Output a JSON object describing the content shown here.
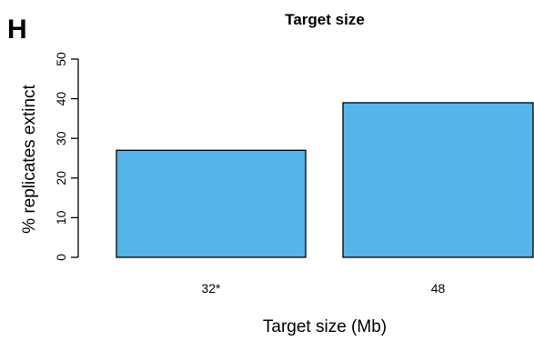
{
  "panel_label": "H",
  "chart_data": {
    "type": "bar",
    "title": "Target size",
    "xlabel": "Target size (Mb)",
    "ylabel": "% replicates extinct",
    "categories": [
      "32*",
      "48"
    ],
    "values": [
      27,
      39
    ],
    "ylim": [
      0,
      50
    ],
    "yticks": [
      0,
      10,
      20,
      30,
      40,
      50
    ],
    "bar_color": "#56B4E9",
    "grid": false,
    "legend": "none"
  }
}
